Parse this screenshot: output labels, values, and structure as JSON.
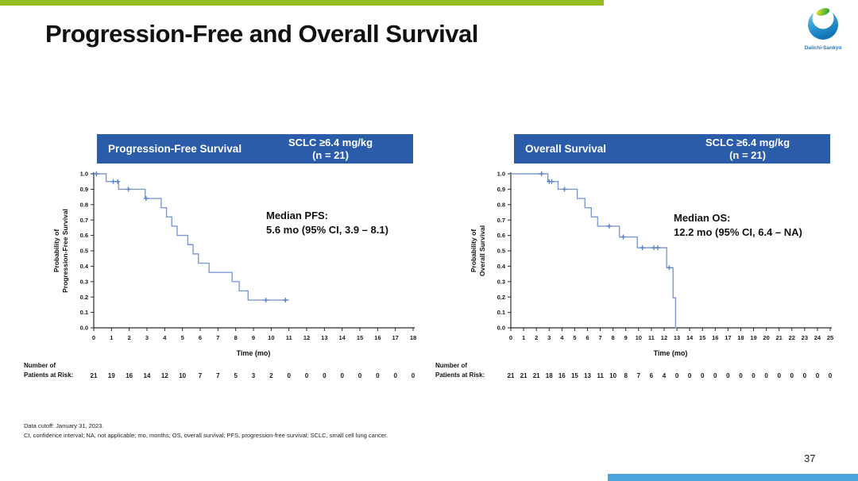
{
  "slide": {
    "title": "Progression-Free and Overall Survival",
    "page_number": "37",
    "logo_text": "Daiichi-Sankyo",
    "footnote_line1": "Data cutoff: January 31, 2023.",
    "footnote_line2": "CI, confidence interval; NA, not applicable; mo, months; OS, overall survival; PFS, progression-free survival; SCLC, small cell lung cancer."
  },
  "colors": {
    "top_bar_green": "#94BB20",
    "header_blue": "#2B5CA9",
    "curve_blue": "#7D9AD4",
    "censor_blue": "#5B82CC",
    "bottom_bar_blue": "#4BA4DC",
    "logo_blue": "#2277C8"
  },
  "chart_data": [
    {
      "type": "line",
      "subtype": "kaplan-meier-step",
      "panel_title": "Progression-Free Survival",
      "cohort_label": "SCLC ≥6.4 mg/kg",
      "cohort_n": "(n = 21)",
      "annotation_line1": "Median PFS:",
      "annotation_line2": "5.6 mo (95% CI, 3.9 – 8.1)",
      "xlabel": "Time (mo)",
      "ylabel_line1": "Probability of",
      "ylabel_line2": "Progression-Free Survival",
      "xlim": [
        0,
        18
      ],
      "xtick_step": 1,
      "ylim": [
        0,
        1
      ],
      "ytick_step": 0.1,
      "grid": false,
      "steps": [
        [
          0,
          1.0
        ],
        [
          0.7,
          0.95
        ],
        [
          1.4,
          0.9
        ],
        [
          2.9,
          0.84
        ],
        [
          3.8,
          0.78
        ],
        [
          4.1,
          0.72
        ],
        [
          4.4,
          0.66
        ],
        [
          4.7,
          0.6
        ],
        [
          5.3,
          0.54
        ],
        [
          5.6,
          0.48
        ],
        [
          5.9,
          0.42
        ],
        [
          6.5,
          0.36
        ],
        [
          7.8,
          0.3
        ],
        [
          8.2,
          0.24
        ],
        [
          8.7,
          0.18
        ]
      ],
      "end_time": 11.0,
      "censors": [
        [
          0.15,
          1.0
        ],
        [
          1.1,
          0.95
        ],
        [
          1.35,
          0.95
        ],
        [
          1.95,
          0.9
        ],
        [
          2.95,
          0.84
        ],
        [
          9.7,
          0.18
        ],
        [
          10.8,
          0.18
        ]
      ],
      "risk_label_line1": "Number of",
      "risk_label_line2": "Patients at Risk:",
      "risk_times": [
        0,
        1,
        2,
        3,
        4,
        5,
        6,
        7,
        8,
        9,
        10,
        11,
        12,
        13,
        14,
        15,
        16,
        17,
        18
      ],
      "risk_values": [
        21,
        19,
        16,
        14,
        12,
        10,
        7,
        7,
        5,
        3,
        2,
        0,
        0,
        0,
        0,
        0,
        0,
        0,
        0
      ]
    },
    {
      "type": "line",
      "subtype": "kaplan-meier-step",
      "panel_title": "Overall Survival",
      "cohort_label": "SCLC ≥6.4 mg/kg",
      "cohort_n": "(n = 21)",
      "annotation_line1": "Median OS:",
      "annotation_line2": "12.2 mo (95% CI, 6.4 – NA)",
      "xlabel": "Time (mo)",
      "ylabel_line1": "Probability of",
      "ylabel_line2": "Overall Survival",
      "xlim": [
        0,
        25
      ],
      "xtick_step": 1,
      "ylim": [
        0,
        1
      ],
      "ytick_step": 0.1,
      "grid": false,
      "steps": [
        [
          0,
          1.0
        ],
        [
          2.9,
          0.95
        ],
        [
          3.7,
          0.9
        ],
        [
          5.2,
          0.84
        ],
        [
          5.8,
          0.78
        ],
        [
          6.3,
          0.72
        ],
        [
          6.8,
          0.66
        ],
        [
          8.5,
          0.59
        ],
        [
          9.9,
          0.52
        ],
        [
          12.2,
          0.39
        ],
        [
          12.7,
          0.195
        ],
        [
          12.9,
          0.0
        ]
      ],
      "end_time": 13.0,
      "censors": [
        [
          2.4,
          1.0
        ],
        [
          3.0,
          0.95
        ],
        [
          3.2,
          0.95
        ],
        [
          4.2,
          0.9
        ],
        [
          7.7,
          0.66
        ],
        [
          8.8,
          0.59
        ],
        [
          10.3,
          0.52
        ],
        [
          11.2,
          0.52
        ],
        [
          11.5,
          0.52
        ],
        [
          12.4,
          0.39
        ]
      ],
      "risk_label_line1": "Number of",
      "risk_label_line2": "Patients at Risk:",
      "risk_times": [
        0,
        1,
        2,
        3,
        4,
        5,
        6,
        7,
        8,
        9,
        10,
        11,
        12,
        13,
        14,
        15,
        16,
        17,
        18,
        19,
        20,
        21,
        22,
        23,
        24,
        25
      ],
      "risk_values": [
        21,
        21,
        21,
        18,
        16,
        15,
        13,
        11,
        10,
        8,
        7,
        6,
        4,
        0,
        0,
        0,
        0,
        0,
        0,
        0,
        0,
        0,
        0,
        0,
        0,
        0
      ]
    }
  ]
}
